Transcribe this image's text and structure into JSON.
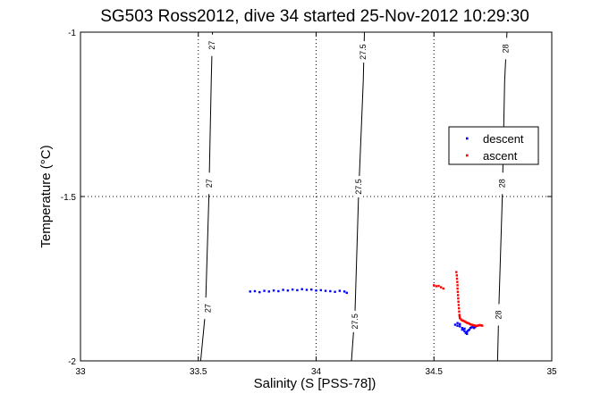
{
  "chart_data": {
    "type": "scatter",
    "title": "SG503 Ross2012, dive 34 started 25-Nov-2012 10:29:30",
    "xlabel": "Salinity (S [PSS-78])",
    "ylabel": "Temperature (°C)",
    "xlim": [
      33,
      35
    ],
    "ylim": [
      -2,
      -1
    ],
    "xticks": [
      33,
      33.5,
      34,
      34.5,
      35
    ],
    "xtick_labels": [
      "33",
      "33.5",
      "34",
      "34.5",
      "35"
    ],
    "yticks": [
      -2,
      -1.5,
      -1
    ],
    "ytick_labels": [
      "-2",
      "-1.5",
      "-1"
    ],
    "grid": "dotted",
    "legend_position": "right",
    "contours": [
      {
        "level": "27",
        "points": [
          [
            33.51,
            -2.0
          ],
          [
            33.53,
            -1.85
          ],
          [
            33.545,
            -1.5
          ],
          [
            33.555,
            -1.15
          ],
          [
            33.56,
            -1.0
          ]
        ],
        "label_positions": [
          [
            33.557,
            -1.04
          ],
          [
            33.546,
            -1.46
          ],
          [
            33.54,
            -1.84
          ]
        ]
      },
      {
        "level": "27.5",
        "points": [
          [
            34.15,
            -2.0
          ],
          [
            34.165,
            -1.85
          ],
          [
            34.18,
            -1.5
          ],
          [
            34.2,
            -1.15
          ],
          [
            34.205,
            -1.0
          ]
        ],
        "label_positions": [
          [
            34.2,
            -1.06
          ],
          [
            34.18,
            -1.47
          ],
          [
            34.165,
            -1.88
          ]
        ]
      },
      {
        "level": "28",
        "points": [
          [
            34.77,
            -2.0
          ],
          [
            34.775,
            -1.85
          ],
          [
            34.79,
            -1.5
          ],
          [
            34.8,
            -1.15
          ],
          [
            34.81,
            -1.0
          ]
        ],
        "label_positions": [
          [
            34.805,
            -1.05
          ],
          [
            34.789,
            -1.46
          ],
          [
            34.775,
            -1.86
          ]
        ]
      }
    ],
    "series": [
      {
        "name": "descent",
        "color": "#0000ff",
        "points": [
          [
            33.72,
            -1.789
          ],
          [
            33.74,
            -1.788
          ],
          [
            33.76,
            -1.791
          ],
          [
            33.78,
            -1.787
          ],
          [
            33.8,
            -1.789
          ],
          [
            33.82,
            -1.786
          ],
          [
            33.84,
            -1.788
          ],
          [
            33.86,
            -1.784
          ],
          [
            33.88,
            -1.786
          ],
          [
            33.9,
            -1.783
          ],
          [
            33.92,
            -1.785
          ],
          [
            33.94,
            -1.782
          ],
          [
            33.96,
            -1.784
          ],
          [
            33.98,
            -1.783
          ],
          [
            34.0,
            -1.786
          ],
          [
            34.02,
            -1.785
          ],
          [
            34.04,
            -1.787
          ],
          [
            34.06,
            -1.788
          ],
          [
            34.08,
            -1.79
          ],
          [
            34.1,
            -1.787
          ],
          [
            34.12,
            -1.789
          ],
          [
            34.13,
            -1.793
          ],
          [
            34.59,
            -1.89
          ],
          [
            34.6,
            -1.893
          ],
          [
            34.61,
            -1.895
          ],
          [
            34.62,
            -1.9
          ],
          [
            34.625,
            -1.905
          ],
          [
            34.63,
            -1.91
          ],
          [
            34.635,
            -1.915
          ],
          [
            34.64,
            -1.912
          ],
          [
            34.645,
            -1.908
          ],
          [
            34.65,
            -1.905
          ],
          [
            34.655,
            -1.9
          ],
          [
            34.66,
            -1.898
          ],
          [
            34.665,
            -1.895
          ],
          [
            34.67,
            -1.9
          ],
          [
            34.675,
            -1.897
          ],
          [
            34.6,
            -1.885
          ],
          [
            34.61,
            -1.888
          ],
          [
            34.62,
            -1.905
          ],
          [
            34.63,
            -1.902
          ],
          [
            34.64,
            -1.918
          ]
        ]
      },
      {
        "name": "ascent",
        "color": "#ff0000",
        "points": [
          [
            34.5,
            -1.77
          ],
          [
            34.51,
            -1.773
          ],
          [
            34.52,
            -1.772
          ],
          [
            34.53,
            -1.776
          ],
          [
            34.54,
            -1.78
          ],
          [
            34.595,
            -1.73
          ],
          [
            34.597,
            -1.74
          ],
          [
            34.598,
            -1.75
          ],
          [
            34.599,
            -1.76
          ],
          [
            34.6,
            -1.77
          ],
          [
            34.6,
            -1.78
          ],
          [
            34.601,
            -1.79
          ],
          [
            34.602,
            -1.8
          ],
          [
            34.603,
            -1.81
          ],
          [
            34.604,
            -1.82
          ],
          [
            34.605,
            -1.83
          ],
          [
            34.606,
            -1.84
          ],
          [
            34.607,
            -1.85
          ],
          [
            34.608,
            -1.86
          ],
          [
            34.609,
            -1.865
          ],
          [
            34.61,
            -1.87
          ],
          [
            34.615,
            -1.874
          ],
          [
            34.62,
            -1.877
          ],
          [
            34.625,
            -1.878
          ],
          [
            34.63,
            -1.88
          ],
          [
            34.635,
            -1.882
          ],
          [
            34.64,
            -1.884
          ],
          [
            34.645,
            -1.885
          ],
          [
            34.65,
            -1.887
          ],
          [
            34.655,
            -1.889
          ],
          [
            34.66,
            -1.89
          ],
          [
            34.665,
            -1.891
          ],
          [
            34.67,
            -1.892
          ],
          [
            34.675,
            -1.893
          ],
          [
            34.68,
            -1.894
          ],
          [
            34.685,
            -1.893
          ],
          [
            34.69,
            -1.892
          ],
          [
            34.695,
            -1.891
          ],
          [
            34.7,
            -1.892
          ],
          [
            34.705,
            -1.893
          ]
        ]
      }
    ]
  }
}
